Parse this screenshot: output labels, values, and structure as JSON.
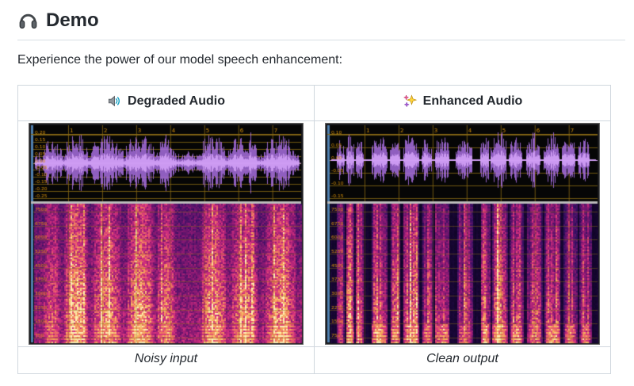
{
  "page": {
    "heading": "Demo",
    "heading_icon": "headphones-icon",
    "intro": "Experience the power of our model speech enhancement:"
  },
  "table": {
    "columns": [
      {
        "header": "Degraded Audio",
        "header_icon": "speaker-icon",
        "caption": "Noisy input"
      },
      {
        "header": "Enhanced Audio",
        "header_icon": "sparkles-icon",
        "caption": "Clean output"
      }
    ]
  },
  "audio_panels": [
    {
      "id": "degraded",
      "seed": 7,
      "waveform": {
        "time_ticks": [
          "1",
          "2",
          "3",
          "4",
          "5",
          "6",
          "7"
        ],
        "y_labels": [
          "0.20",
          "0.15",
          "0.10",
          "0.05",
          "0.00",
          "-0.05",
          "-0.10",
          "-0.15",
          "-0.20",
          "-0.25"
        ],
        "zero_index": 4,
        "noise_floor": 0.3,
        "bursts": [
          [
            0.03,
            0.1,
            0.8
          ],
          [
            0.11,
            0.2,
            1.0
          ],
          [
            0.21,
            0.33,
            0.9
          ],
          [
            0.34,
            0.45,
            0.95
          ],
          [
            0.46,
            0.53,
            0.85
          ],
          [
            0.55,
            0.6,
            0.45
          ],
          [
            0.62,
            0.72,
            0.95
          ],
          [
            0.73,
            0.84,
            0.9
          ],
          [
            0.86,
            0.98,
            0.95
          ]
        ]
      },
      "spectrogram": {
        "y_labels": [
          "7500",
          "6750",
          "6000",
          "5250",
          "4500",
          "3750",
          "3000",
          "2250",
          "1500",
          "750"
        ],
        "noise_floor": 0.5,
        "streakiness": 0.25
      }
    },
    {
      "id": "enhanced",
      "seed": 13,
      "waveform": {
        "time_ticks": [
          "1",
          "2",
          "3",
          "4",
          "5",
          "6",
          "7"
        ],
        "y_labels": [
          "0.10",
          "0.05",
          "0.00",
          "-0.05",
          "-0.10",
          "-0.15"
        ],
        "zero_index": 2,
        "noise_floor": 0.02,
        "bursts": [
          [
            0.02,
            0.05,
            0.65
          ],
          [
            0.055,
            0.085,
            0.95
          ],
          [
            0.09,
            0.12,
            0.8
          ],
          [
            0.15,
            0.21,
            1.0
          ],
          [
            0.22,
            0.26,
            0.85
          ],
          [
            0.27,
            0.33,
            0.95
          ],
          [
            0.34,
            0.38,
            0.8
          ],
          [
            0.39,
            0.445,
            0.9
          ],
          [
            0.47,
            0.53,
            0.75
          ],
          [
            0.56,
            0.595,
            0.95
          ],
          [
            0.6,
            0.66,
            1.0
          ],
          [
            0.67,
            0.72,
            0.9
          ],
          [
            0.735,
            0.79,
            0.85
          ],
          [
            0.8,
            0.86,
            0.95
          ],
          [
            0.87,
            0.92,
            0.85
          ],
          [
            0.93,
            0.975,
            0.8
          ]
        ]
      },
      "spectrogram": {
        "y_labels": [
          "7500",
          "6750",
          "6000",
          "5250",
          "4500",
          "3750",
          "3000",
          "2250",
          "1500",
          "750"
        ],
        "noise_floor": 0.07,
        "streakiness": 0.8
      }
    }
  ],
  "colors": {
    "text": "#24292f",
    "table_border": "#d0d7de",
    "heading_rule": "#d8dee4",
    "wave": "#a86fe0",
    "wave_core": "#d2a0f6",
    "grid": "#8a6a14",
    "grid_bright": "#c79a1e",
    "tick_label": "#d8920a",
    "panel_bg": "#060606",
    "ruler_strip": "#4f7fae",
    "frame": "#6f6f6f",
    "frame_inner": "#17171a",
    "divider": "#b9b9b9",
    "spectro_stops": [
      [
        0,
        "#07021a"
      ],
      [
        0.3,
        "#360f63"
      ],
      [
        0.52,
        "#8f1a74"
      ],
      [
        0.68,
        "#d6317f"
      ],
      [
        0.8,
        "#ef7960"
      ],
      [
        0.9,
        "#f6b25e"
      ],
      [
        1,
        "#fdedb4"
      ]
    ]
  }
}
